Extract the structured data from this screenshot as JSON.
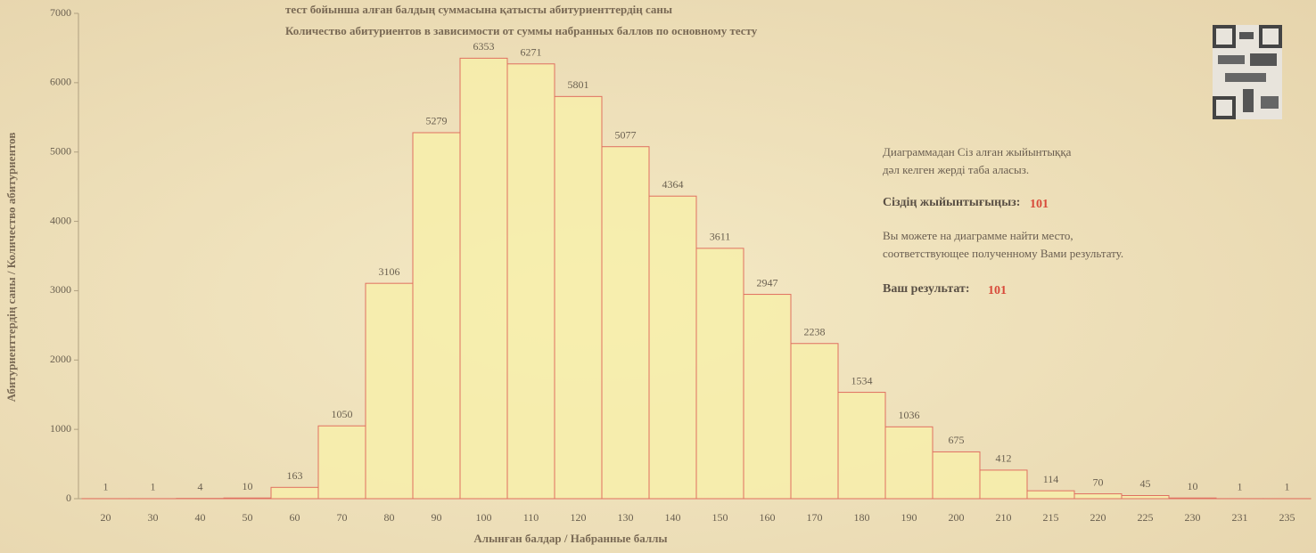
{
  "chart_data": {
    "type": "bar",
    "title": "тест бойынша алған балдың суммасына қатысты абитуриенттердің саны",
    "subtitle": "Количество абитуриентов в зависимости от суммы набранных баллов по основному тесту",
    "y_label": "Абитуриенттердің саны / Количество абитуриентов",
    "x_label": "Алынған балдар / Набранные баллы",
    "categories": [
      "20",
      "30",
      "40",
      "50",
      "60",
      "70",
      "80",
      "90",
      "100",
      "110",
      "120",
      "130",
      "140",
      "150",
      "160",
      "170",
      "180",
      "190",
      "200",
      "210",
      "215",
      "220",
      "225",
      "230",
      "231",
      "235"
    ],
    "values": [
      1,
      1,
      4,
      10,
      163,
      1050,
      3106,
      5279,
      6353,
      6271,
      5801,
      5077,
      4364,
      3611,
      2947,
      2238,
      1534,
      1036,
      675,
      412,
      114,
      70,
      45,
      10,
      1,
      1
    ],
    "color": "#f7eeaa",
    "edge_color": "#e07060",
    "ylim": [
      0,
      7000
    ],
    "yticks": [
      0,
      1000,
      2000,
      3000,
      4000,
      5000,
      6000,
      7000
    ],
    "annotations": {
      "kz_note_1": "Диаграммадан Сіз алған жыйынтыққа",
      "kz_note_2": "дәл келген жерді таба аласыз.",
      "kz_result_label": "Сіздің жыйынтығыңыз:",
      "kz_result": 101,
      "ru_note_1": "Вы можете на диаграмме найти место,",
      "ru_note_2": "соответствующее полученному Вами результату.",
      "ru_result_label": "Ваш результат:",
      "ru_result": 101
    }
  }
}
